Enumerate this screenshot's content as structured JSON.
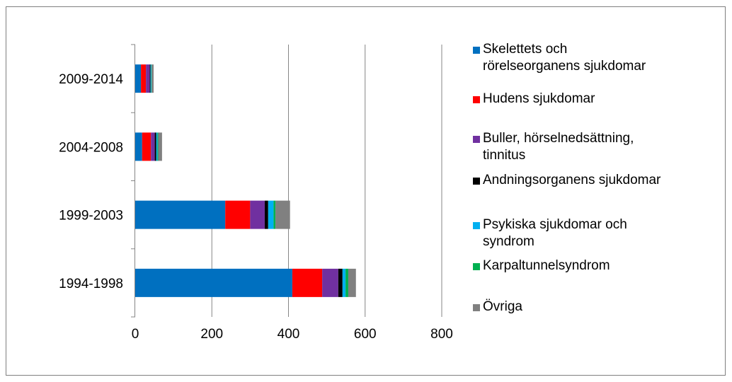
{
  "chart_data": {
    "type": "bar",
    "orientation": "horizontal",
    "stacked": true,
    "categories": [
      "2009-2014",
      "2004-2008",
      "1999-2003",
      "1994-1998"
    ],
    "xlim": [
      0,
      800
    ],
    "xticks": [
      "0",
      "200",
      "400",
      "600",
      "800"
    ],
    "grid": true,
    "legend_position": "right",
    "series": [
      {
        "name": "Skelettets och rörelseorganens sjukdomar",
        "color": "#0070C0",
        "values": [
          15,
          18,
          235,
          410
        ]
      },
      {
        "name": "Hudens sjukdomar",
        "color": "#FF0000",
        "values": [
          13,
          23,
          65,
          78
        ]
      },
      {
        "name": "Buller, hörselnedsättning, tinnitus",
        "color": "#7030A0",
        "values": [
          10,
          10,
          38,
          42
        ]
      },
      {
        "name": "Andningsorganens sjukdomar",
        "color": "#000000",
        "values": [
          2,
          4,
          9,
          11
        ]
      },
      {
        "name": "Psykiska sjukdomar och syndrom",
        "color": "#00B0F0",
        "values": [
          2,
          3,
          14,
          8
        ]
      },
      {
        "name": "Karpaltunnelsyndrom",
        "color": "#00B050",
        "values": [
          1,
          2,
          5,
          7
        ]
      },
      {
        "name": "Övriga",
        "color": "#808080",
        "values": [
          5,
          10,
          38,
          20
        ]
      }
    ]
  },
  "legend_labels": [
    "Skelettets och\nrörelseorganens sjukdomar",
    "Hudens sjukdomar",
    "Buller, hörselnedsättning,\ntinnitus",
    "Andningsorganens sjukdomar",
    "Psykiska sjukdomar och\nsyndrom",
    "Karpaltunnelsyndrom",
    "Övriga"
  ]
}
